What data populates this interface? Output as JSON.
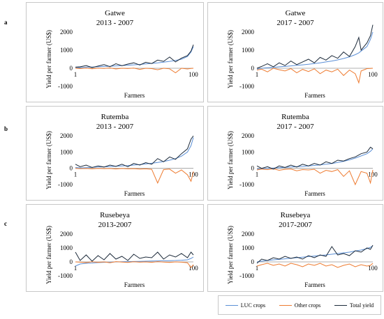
{
  "row_labels": [
    "a",
    "b",
    "c"
  ],
  "legend": [
    {
      "label": "LUC crops",
      "color": "#5b8fd6"
    },
    {
      "label": "Other crops",
      "color": "#ee7b30"
    },
    {
      "label": "Total yield",
      "color": "#1c2a3a"
    }
  ],
  "chart_data": [
    {
      "type": "line",
      "site": "Gatwe",
      "period": "2013 - 2007",
      "xlabel": "Farmers",
      "ylabel": "Yield per farmer (US$)",
      "yticks": [
        "2000",
        "1000",
        "0",
        "-1000"
      ],
      "xticks": [
        "1",
        "100"
      ],
      "ylim": [
        -1000,
        2000
      ],
      "xlim": [
        1,
        100
      ],
      "x": [
        1,
        5,
        10,
        15,
        20,
        25,
        30,
        35,
        40,
        45,
        50,
        55,
        60,
        65,
        70,
        75,
        80,
        85,
        90,
        95,
        98,
        100
      ],
      "series": [
        {
          "name": "LUC crops",
          "values": [
            50,
            40,
            60,
            70,
            80,
            100,
            110,
            130,
            150,
            170,
            190,
            210,
            240,
            270,
            300,
            340,
            380,
            430,
            500,
            650,
            900,
            1200
          ]
        },
        {
          "name": "Other crops",
          "values": [
            0,
            -20,
            10,
            -30,
            5,
            -10,
            20,
            -40,
            0,
            -15,
            10,
            -60,
            0,
            -20,
            -80,
            0,
            -30,
            -250,
            0,
            -40,
            -10,
            0
          ]
        },
        {
          "name": "Total yield",
          "values": [
            60,
            80,
            150,
            40,
            120,
            200,
            90,
            250,
            140,
            230,
            300,
            180,
            330,
            260,
            450,
            380,
            620,
            350,
            560,
            700,
            950,
            1300
          ]
        }
      ]
    },
    {
      "type": "line",
      "site": "Gatwe",
      "period": "2017 - 2007",
      "xlabel": "Farmers",
      "ylabel": "Yield per farmer (US$)",
      "yticks": [
        "2000",
        "1000",
        "0",
        "-1000"
      ],
      "xticks": [
        "1",
        "100"
      ],
      "ylim": [
        -1000,
        2000
      ],
      "xlim": [
        1,
        100
      ],
      "x": [
        1,
        5,
        10,
        15,
        20,
        25,
        30,
        35,
        40,
        45,
        50,
        55,
        60,
        65,
        70,
        75,
        80,
        85,
        88,
        90,
        95,
        98,
        100
      ],
      "series": [
        {
          "name": "LUC crops",
          "values": [
            -50,
            0,
            30,
            50,
            80,
            100,
            130,
            160,
            190,
            220,
            260,
            300,
            350,
            400,
            460,
            540,
            630,
            750,
            850,
            950,
            1200,
            1600,
            2000
          ]
        },
        {
          "name": "Other crops",
          "values": [
            -100,
            -50,
            -200,
            0,
            -80,
            -150,
            -20,
            -250,
            -60,
            -180,
            -30,
            -300,
            -100,
            -200,
            -50,
            -400,
            -100,
            -300,
            -800,
            -150,
            -20,
            -10,
            0
          ]
        },
        {
          "name": "Total yield",
          "values": [
            0,
            100,
            250,
            80,
            300,
            150,
            400,
            200,
            350,
            500,
            300,
            600,
            450,
            700,
            550,
            900,
            650,
            1200,
            1700,
            1000,
            1400,
            1800,
            2400
          ]
        }
      ]
    },
    {
      "type": "line",
      "site": "Rutemba",
      "period": "2013 - 2007",
      "xlabel": "Farmers",
      "ylabel": "Yield per farmer (US$)",
      "yticks": [
        "2000",
        "1000",
        "0",
        "-1000"
      ],
      "xticks": [
        "1",
        "100"
      ],
      "ylim": [
        -1000,
        2000
      ],
      "xlim": [
        1,
        100
      ],
      "x": [
        1,
        5,
        10,
        15,
        20,
        25,
        30,
        35,
        40,
        45,
        50,
        55,
        60,
        65,
        70,
        75,
        80,
        85,
        90,
        95,
        98,
        100
      ],
      "series": [
        {
          "name": "LUC crops",
          "values": [
            50,
            30,
            40,
            60,
            80,
            90,
            110,
            130,
            150,
            170,
            200,
            230,
            270,
            310,
            360,
            420,
            500,
            600,
            750,
            1000,
            1400,
            1900
          ]
        },
        {
          "name": "Other crops",
          "values": [
            0,
            -20,
            -10,
            -30,
            0,
            -20,
            -10,
            -40,
            -10,
            -30,
            -20,
            -50,
            -30,
            -60,
            -900,
            -80,
            -50,
            -300,
            -100,
            -400,
            -800,
            -200
          ]
        },
        {
          "name": "Total yield",
          "values": [
            250,
            100,
            200,
            50,
            150,
            80,
            200,
            120,
            250,
            100,
            300,
            200,
            350,
            250,
            600,
            400,
            700,
            550,
            900,
            1200,
            1800,
            2000
          ]
        }
      ]
    },
    {
      "type": "line",
      "site": "Rutemba",
      "period": "2017 - 2007",
      "xlabel": "Farmers",
      "ylabel": "Yield per farmer (US$)",
      "yticks": [
        "2000",
        "1000",
        "0",
        "-1000"
      ],
      "xticks": [
        "1",
        "100"
      ],
      "ylim": [
        -1000,
        2000
      ],
      "xlim": [
        1,
        100
      ],
      "x": [
        1,
        5,
        10,
        15,
        20,
        25,
        30,
        35,
        40,
        45,
        50,
        55,
        60,
        65,
        70,
        75,
        80,
        85,
        90,
        95,
        98,
        100
      ],
      "series": [
        {
          "name": "LUC crops",
          "values": [
            -50,
            -20,
            0,
            20,
            40,
            60,
            80,
            100,
            120,
            150,
            180,
            210,
            250,
            300,
            360,
            430,
            520,
            630,
            760,
            900,
            1050,
            1200
          ]
        },
        {
          "name": "Other crops",
          "values": [
            -100,
            -50,
            -80,
            -30,
            -120,
            -60,
            -40,
            -150,
            -80,
            -100,
            -60,
            -300,
            -120,
            -200,
            -80,
            -500,
            -150,
            -1000,
            -200,
            -300,
            -900,
            -100
          ]
        },
        {
          "name": "Total yield",
          "values": [
            150,
            0,
            100,
            -50,
            150,
            50,
            200,
            80,
            250,
            150,
            300,
            200,
            400,
            300,
            500,
            450,
            600,
            700,
            900,
            1000,
            1300,
            1200
          ]
        }
      ]
    },
    {
      "type": "line",
      "site": "Rusebeya",
      "period": "2013-2007",
      "xlabel": "Farmers",
      "ylabel": "Yield per farmer (US$)",
      "yticks": [
        "2000",
        "1000",
        "0",
        "-1000"
      ],
      "xticks": [
        "1",
        "100"
      ],
      "ylim": [
        -1000,
        2000
      ],
      "xlim": [
        1,
        100
      ],
      "x": [
        1,
        5,
        10,
        15,
        20,
        25,
        30,
        35,
        40,
        45,
        50,
        55,
        60,
        65,
        70,
        75,
        80,
        85,
        90,
        95,
        98,
        100
      ],
      "series": [
        {
          "name": "LUC crops",
          "values": [
            -300,
            -150,
            -100,
            -80,
            -50,
            -30,
            -20,
            0,
            10,
            20,
            30,
            40,
            50,
            60,
            70,
            80,
            90,
            100,
            120,
            150,
            250,
            350
          ]
        },
        {
          "name": "Other crops",
          "values": [
            0,
            -20,
            -50,
            10,
            -30,
            0,
            -60,
            20,
            -10,
            -40,
            10,
            -20,
            0,
            -30,
            20,
            -10,
            -40,
            0,
            -20,
            -60,
            -400,
            -200
          ]
        },
        {
          "name": "Total yield",
          "values": [
            700,
            100,
            500,
            50,
            450,
            150,
            600,
            200,
            400,
            100,
            550,
            250,
            350,
            300,
            700,
            200,
            500,
            350,
            600,
            300,
            700,
            500
          ]
        }
      ]
    },
    {
      "type": "line",
      "site": "Rusebeya",
      "period": "2017-2007",
      "xlabel": "Farmers",
      "ylabel": "Yield per farmer (US$)",
      "yticks": [
        "2000",
        "1000",
        "0",
        "-1000"
      ],
      "xticks": [
        "1",
        "100"
      ],
      "ylim": [
        -1000,
        2000
      ],
      "xlim": [
        1,
        100
      ],
      "x": [
        1,
        5,
        10,
        15,
        20,
        25,
        30,
        35,
        40,
        45,
        50,
        55,
        60,
        65,
        70,
        75,
        80,
        85,
        90,
        95,
        98,
        100
      ],
      "series": [
        {
          "name": "LUC crops",
          "values": [
            0,
            50,
            100,
            150,
            180,
            220,
            260,
            300,
            340,
            380,
            420,
            460,
            500,
            550,
            600,
            650,
            700,
            780,
            850,
            950,
            1050,
            1150
          ]
        },
        {
          "name": "Other crops",
          "values": [
            -300,
            -200,
            -100,
            -250,
            -150,
            -300,
            -100,
            -200,
            -350,
            -150,
            -250,
            -100,
            -300,
            -200,
            -400,
            -250,
            -150,
            -350,
            -200,
            -300,
            -250,
            -100
          ]
        },
        {
          "name": "Total yield",
          "values": [
            -100,
            200,
            100,
            300,
            200,
            400,
            250,
            350,
            200,
            450,
            300,
            500,
            400,
            1100,
            500,
            600,
            450,
            800,
            700,
            1000,
            900,
            1200
          ]
        }
      ]
    }
  ]
}
